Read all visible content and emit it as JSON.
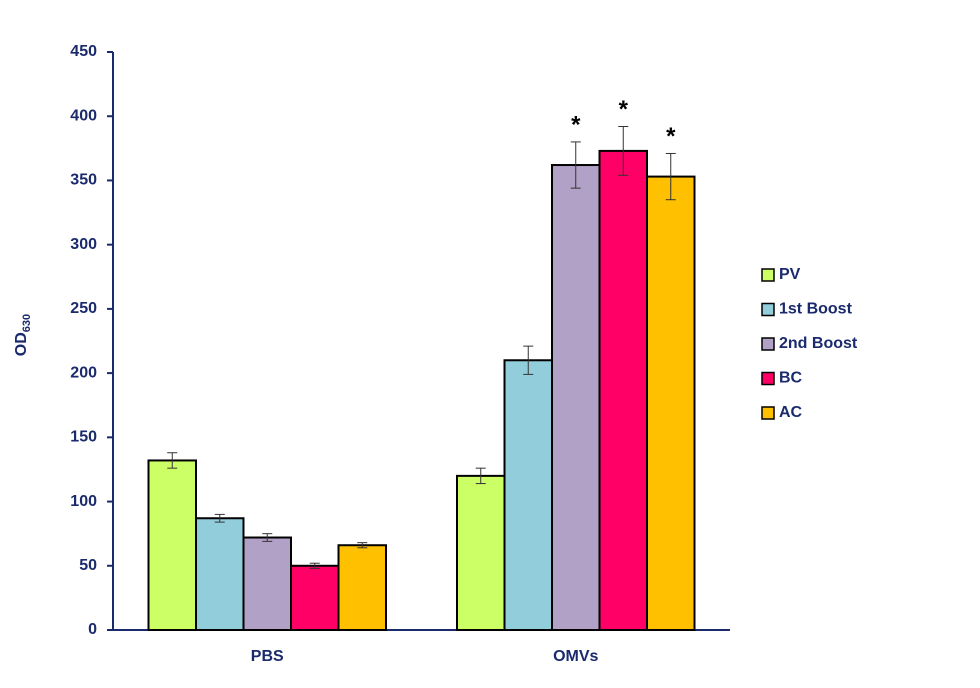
{
  "chart_data": {
    "type": "bar",
    "ylabel": "OD",
    "ylabel_subscript": "630",
    "categories": [
      "PBS",
      "OMVs"
    ],
    "series": [
      {
        "name": "PV",
        "color": "#ccff66",
        "values": [
          132,
          120
        ],
        "errors": [
          6,
          6
        ],
        "annotations": [
          null,
          null
        ]
      },
      {
        "name": "1st Boost",
        "color": "#92cddc",
        "values": [
          87,
          210
        ],
        "errors": [
          3,
          11
        ],
        "annotations": [
          null,
          null
        ]
      },
      {
        "name": "2nd Boost",
        "color": "#b2a1c7",
        "values": [
          72,
          362
        ],
        "errors": [
          3,
          18
        ],
        "annotations": [
          null,
          "*"
        ]
      },
      {
        "name": "BC",
        "color": "#ff0066",
        "values": [
          50,
          373
        ],
        "errors": [
          2,
          19
        ],
        "annotations": [
          null,
          "*"
        ]
      },
      {
        "name": "AC",
        "color": "#ffc000",
        "values": [
          66,
          353
        ],
        "errors": [
          2,
          18
        ],
        "annotations": [
          null,
          "*"
        ]
      }
    ],
    "ylim": [
      0,
      450
    ],
    "yticks": [
      0,
      50,
      100,
      150,
      200,
      250,
      300,
      350,
      400,
      450
    ],
    "grid": false,
    "legend": "right"
  }
}
